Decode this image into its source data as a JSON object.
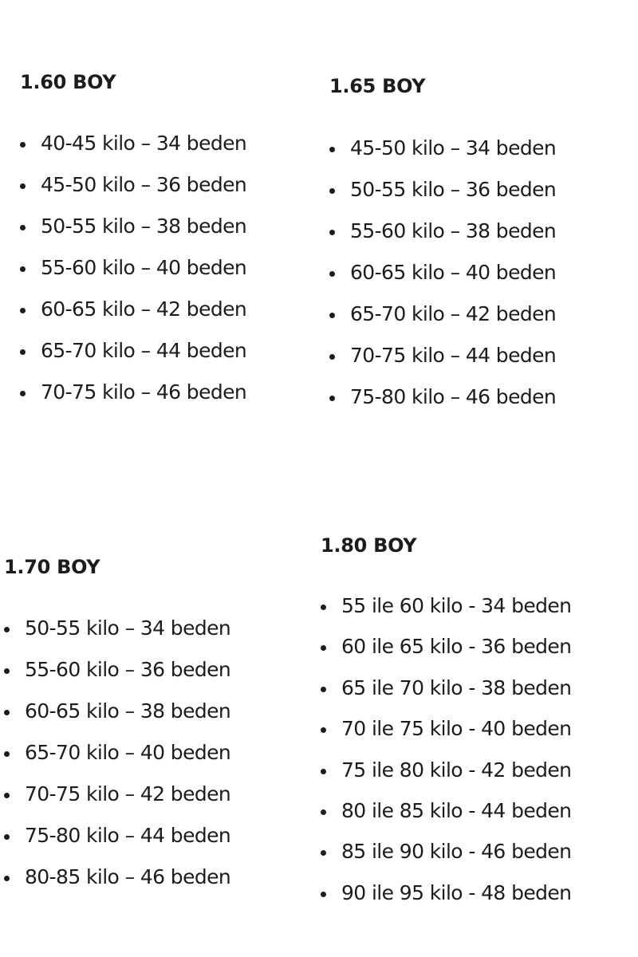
{
  "sections": [
    {
      "id": "s160",
      "title": "1.60 BOY",
      "items": [
        "40-45 kilo – 34 beden",
        "45-50 kilo – 36 beden",
        "50-55 kilo – 38 beden",
        "55-60 kilo – 40 beden",
        "60-65 kilo – 42 beden",
        "65-70 kilo – 44 beden",
        "70-75 kilo – 46 beden"
      ]
    },
    {
      "id": "s165",
      "title": "1.65 BOY",
      "items": [
        "45-50 kilo – 34 beden",
        "50-55 kilo – 36 beden",
        "55-60 kilo – 38 beden",
        "60-65 kilo – 40 beden",
        "65-70 kilo – 42 beden",
        "70-75 kilo – 44 beden",
        "75-80 kilo – 46 beden"
      ]
    },
    {
      "id": "s170",
      "title": "1.70 BOY",
      "items": [
        "50-55 kilo – 34 beden",
        "55-60 kilo – 36 beden",
        "60-65 kilo – 38 beden",
        "65-70 kilo – 40 beden",
        "70-75 kilo – 42 beden",
        "75-80 kilo – 44 beden",
        "80-85 kilo – 46 beden"
      ]
    },
    {
      "id": "s180",
      "title": "1.80 BOY",
      "items": [
        "55 ile 60 kilo - 34 beden",
        "60 ile 65 kilo - 36 beden",
        "65 ile 70 kilo - 38 beden",
        "70 ile 75 kilo - 40 beden",
        "75 ile 80 kilo - 42 beden",
        "80 ile 85 kilo - 44 beden",
        "85 ile 90 kilo - 46 beden",
        "90 ile 95 kilo - 48 beden"
      ]
    }
  ]
}
